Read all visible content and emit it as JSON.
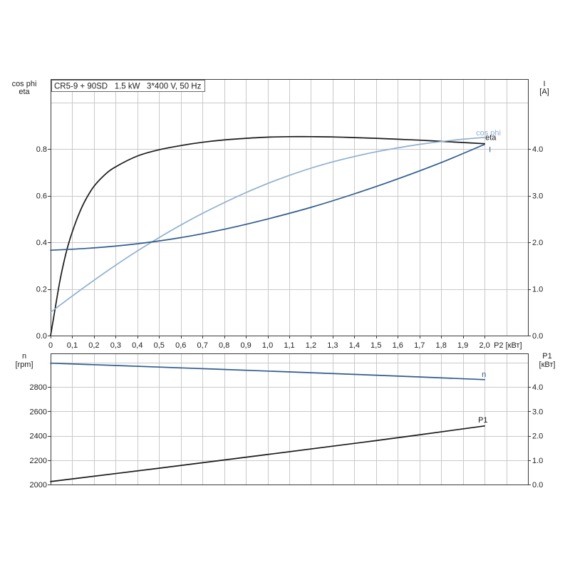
{
  "chart_data": [
    {
      "type": "line",
      "title": "CR5-9 + 90SD   1.5 kW   3*400 V, 50 Hz",
      "xlabel": "P2 [кВт]",
      "xlim": [
        0,
        2.2
      ],
      "xticks": [
        0,
        0.1,
        0.2,
        0.3,
        0.4,
        0.5,
        0.6,
        0.7,
        0.8,
        0.9,
        1.0,
        1.1,
        1.2,
        1.3,
        1.4,
        1.5,
        1.6,
        1.7,
        1.8,
        1.9,
        2.0
      ],
      "xtick_labels": [
        "0",
        "0,1",
        "0,2",
        "0,3",
        "0,4",
        "0,5",
        "0,6",
        "0,7",
        "0,8",
        "0,9",
        "1,0",
        "1,1",
        "1,2",
        "1,3",
        "1,4",
        "1,5",
        "1,6",
        "1,7",
        "1,8",
        "1,9",
        "2,0"
      ],
      "xgrid_step": 0.1,
      "grid": true,
      "legend": "inline",
      "y_left": {
        "label": [
          "cos phi",
          "eta"
        ],
        "lim": [
          0,
          1.1
        ],
        "ticks": [
          0,
          0.2,
          0.4,
          0.6,
          0.8
        ],
        "tick_labels": [
          "0.0",
          "0.2",
          "0.4",
          "0.6",
          "0.8"
        ],
        "grid_step": 0.2
      },
      "y_right": {
        "label": [
          "I",
          "[A]"
        ],
        "lim": [
          0,
          5.5
        ],
        "ticks": [
          0,
          1,
          2,
          3,
          4
        ],
        "tick_labels": [
          "0.0",
          "1.0",
          "2.0",
          "3.0",
          "4.0"
        ]
      },
      "series": [
        {
          "name": "eta",
          "secondary_axis": false,
          "color": "#1a1a1a",
          "x": [
            0,
            0.02,
            0.04,
            0.06,
            0.08,
            0.1,
            0.13,
            0.16,
            0.2,
            0.25,
            0.3,
            0.4,
            0.5,
            0.6,
            0.7,
            0.8,
            0.9,
            1.0,
            1.1,
            1.2,
            1.3,
            1.4,
            1.5,
            1.6,
            1.7,
            1.8,
            1.9,
            2.0
          ],
          "y": [
            0,
            0.11,
            0.22,
            0.31,
            0.385,
            0.445,
            0.52,
            0.58,
            0.64,
            0.69,
            0.724,
            0.77,
            0.797,
            0.815,
            0.829,
            0.839,
            0.846,
            0.851,
            0.853,
            0.853,
            0.852,
            0.849,
            0.846,
            0.842,
            0.838,
            0.833,
            0.828,
            0.823
          ]
        },
        {
          "name": "cos phi",
          "secondary_axis": false,
          "color": "#8fb0cf",
          "x": [
            0,
            0.1,
            0.2,
            0.3,
            0.4,
            0.5,
            0.6,
            0.7,
            0.8,
            0.9,
            1.0,
            1.1,
            1.2,
            1.3,
            1.4,
            1.5,
            1.6,
            1.7,
            1.8,
            1.9,
            2.0
          ],
          "y": [
            0.1,
            0.17,
            0.237,
            0.302,
            0.363,
            0.42,
            0.474,
            0.524,
            0.57,
            0.613,
            0.652,
            0.687,
            0.718,
            0.745,
            0.768,
            0.788,
            0.805,
            0.82,
            0.832,
            0.842,
            0.85
          ]
        },
        {
          "name": "I",
          "secondary_axis": true,
          "color": "#2f5c8f",
          "x": [
            0,
            0.2,
            0.4,
            0.6,
            0.8,
            1.0,
            1.2,
            1.4,
            1.6,
            1.8,
            2.0
          ],
          "y": [
            1.83,
            1.88,
            1.97,
            2.1,
            2.28,
            2.5,
            2.75,
            3.04,
            3.36,
            3.71,
            4.1
          ]
        }
      ]
    },
    {
      "type": "line",
      "xlim": [
        0,
        2.2
      ],
      "xgrid_step": 0.1,
      "grid": true,
      "legend": "inline",
      "y_left": {
        "label": [
          "n",
          "[rpm]"
        ],
        "lim": [
          2000,
          3075
        ],
        "ticks": [
          2000,
          2200,
          2400,
          2600,
          2800
        ],
        "tick_labels": [
          "2000",
          "2200",
          "2400",
          "2600",
          "2800"
        ],
        "grid_step": 200
      },
      "y_right": {
        "label": [
          "P1",
          "[кВт]"
        ],
        "lim": [
          0,
          5.375
        ],
        "ticks": [
          0,
          1,
          2,
          3,
          4
        ],
        "tick_labels": [
          "0.0",
          "1.0",
          "2.0",
          "3.0",
          "4.0"
        ]
      },
      "series": [
        {
          "name": "n",
          "secondary_axis": false,
          "color": "#2f5c8f",
          "x": [
            0,
            0.5,
            1.0,
            1.5,
            2.0
          ],
          "y": [
            2995,
            2963,
            2930,
            2896,
            2860
          ]
        },
        {
          "name": "P1",
          "secondary_axis": true,
          "color": "#1a1a1a",
          "x": [
            0,
            0.5,
            1.0,
            1.5,
            2.0
          ],
          "y": [
            0.12,
            0.67,
            1.23,
            1.8,
            2.4
          ]
        }
      ]
    }
  ]
}
